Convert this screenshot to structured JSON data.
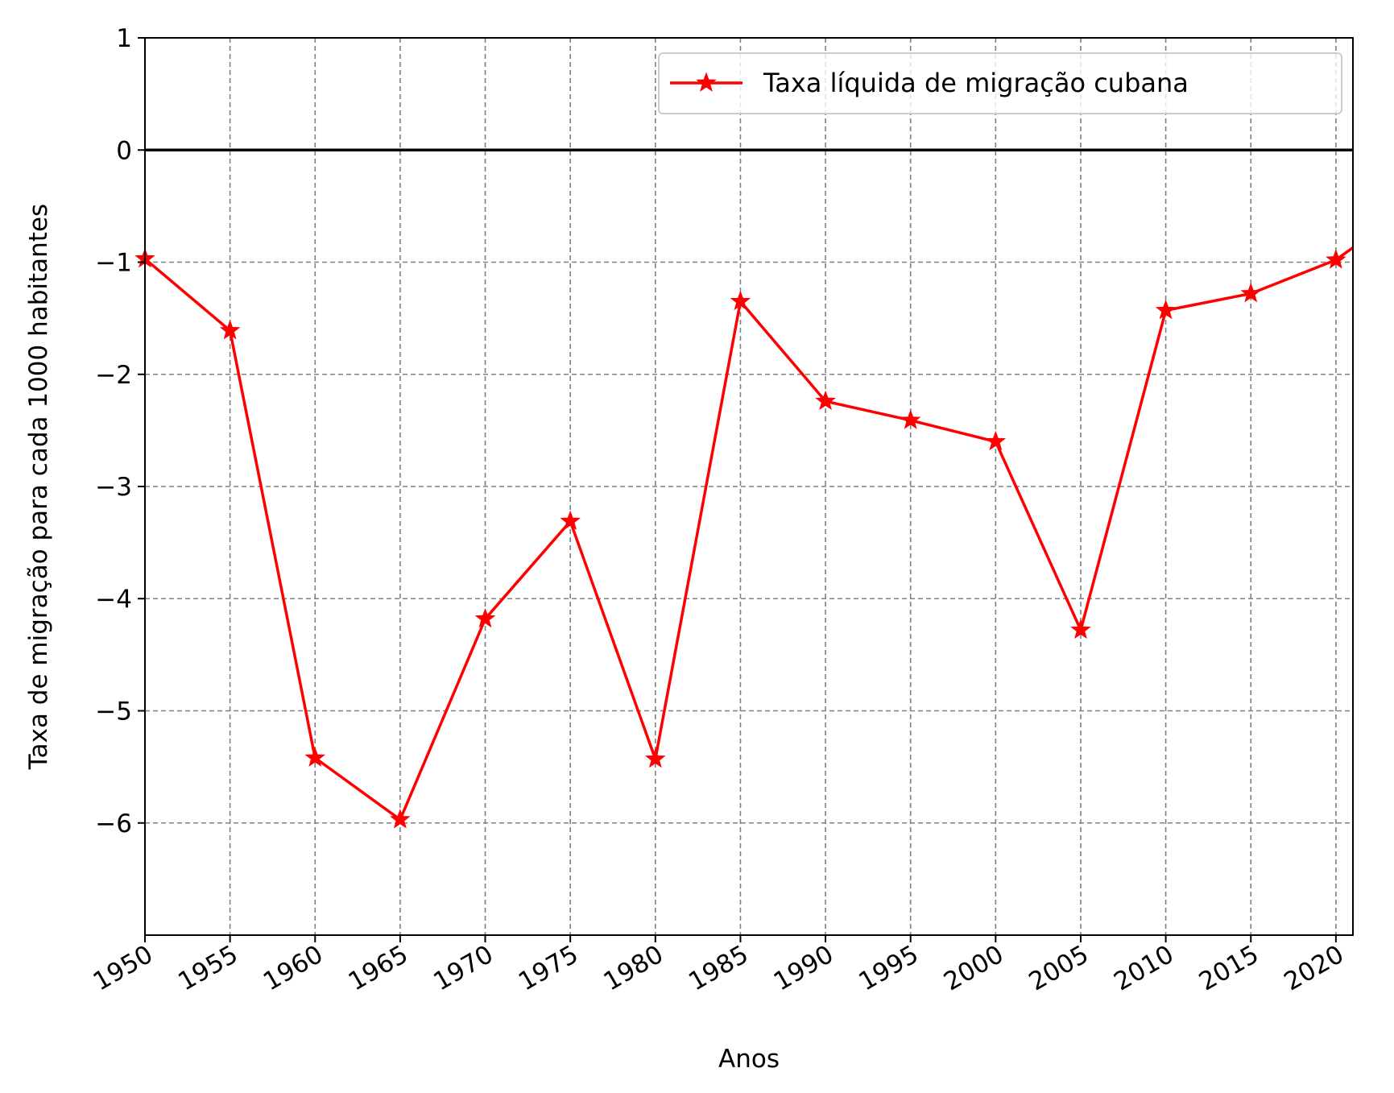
{
  "chart_data": {
    "type": "line",
    "x": [
      1950,
      1955,
      1960,
      1965,
      1970,
      1975,
      1980,
      1985,
      1990,
      1995,
      2000,
      2005,
      2010,
      2015,
      2020
    ],
    "series": [
      {
        "name": "Taxa líquida de migração cubana",
        "color": "#ff0000",
        "marker": "star",
        "values": [
          -0.97,
          -1.61,
          -5.42,
          -5.97,
          -4.18,
          -3.31,
          -5.43,
          -1.35,
          -2.24,
          -2.41,
          -2.6,
          -4.28,
          -1.43,
          -1.28,
          -0.98
        ]
      }
    ],
    "end_point": {
      "x": 2021,
      "y": -0.87
    },
    "xlabel": "Anos",
    "ylabel": "Taxa de migração para cada 1000 habitantes",
    "xlim": [
      1950,
      2021
    ],
    "ylim": [
      -7,
      1
    ],
    "xticks": [
      1950,
      1955,
      1960,
      1965,
      1970,
      1975,
      1980,
      1985,
      1990,
      1995,
      2000,
      2005,
      2010,
      2015,
      2020
    ],
    "xtick_labels": [
      "1950",
      "1955",
      "1960",
      "1965",
      "1970",
      "1975",
      "1980",
      "1985",
      "1990",
      "1995",
      "2000",
      "2005",
      "2010",
      "2015",
      "2020"
    ],
    "yticks": [
      1,
      0,
      -1,
      -2,
      -3,
      -4,
      -5,
      -6
    ],
    "ytick_labels": [
      "1",
      "0",
      "−1",
      "−2",
      "−3",
      "−4",
      "−5",
      "−6"
    ],
    "grid": true,
    "reference_line_y": 0,
    "legend_position": "upper-right"
  }
}
